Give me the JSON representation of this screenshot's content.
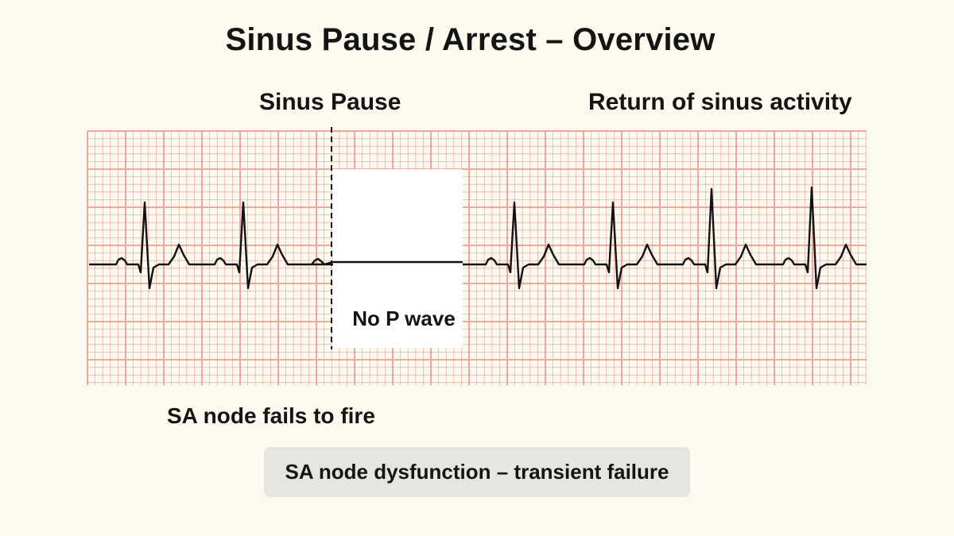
{
  "title": "Sinus Pause / Arrest – Overview",
  "labels": {
    "sinus_pause": "Sinus Pause",
    "return": "Return of sinus activity",
    "no_p_wave": "No P wave",
    "sa_node_fails": "SA node fails to fire"
  },
  "caption": "SA node dysfunction – transient failure",
  "colors": {
    "background": "#fcf9ef",
    "grid_line": "#f09a90",
    "trace": "#111111",
    "caption_bg": "#e6e6e0"
  },
  "rhythm": {
    "beats_before_pause": 2,
    "beats_after_pause": 4,
    "pause_marker": "dashed-line"
  }
}
